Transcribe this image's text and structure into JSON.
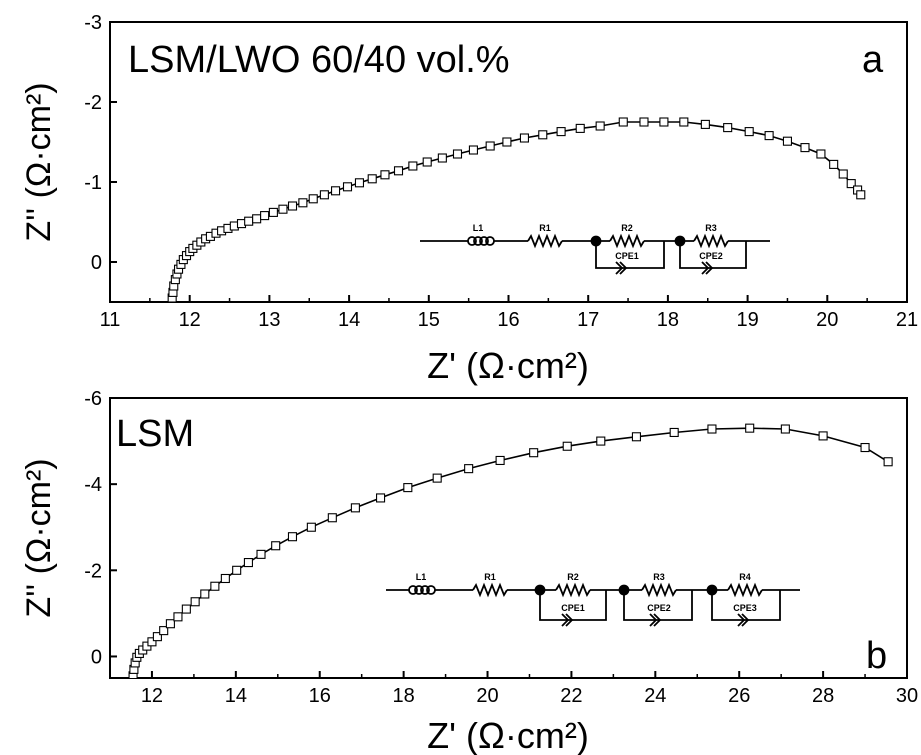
{
  "chart_data": [
    {
      "type": "scatter",
      "panel_label": "a",
      "title": "LSM/LWO 60/40 vol.%",
      "xlabel": "Z' (Ω·cm²)",
      "ylabel": "Z'' (Ω·cm²)",
      "xlim": [
        11,
        21
      ],
      "ylim": [
        0.5,
        -3
      ],
      "x_ticks": [
        "11",
        "12",
        "13",
        "14",
        "15",
        "16",
        "17",
        "18",
        "19",
        "20",
        "21"
      ],
      "y_ticks": [
        "0",
        "-1",
        "-2",
        "-3"
      ],
      "circuit_labels": [
        "L1",
        "R1",
        "R2",
        "CPE1",
        "R3",
        "CPE2"
      ],
      "series": [
        {
          "marker": "open-square",
          "x": [
            11.78,
            11.79,
            11.8,
            11.82,
            11.84,
            11.86,
            11.89,
            11.92,
            11.96,
            12.0,
            12.04,
            12.09,
            12.14,
            12.2,
            12.26,
            12.33,
            12.4,
            12.48,
            12.56,
            12.65,
            12.74,
            12.84,
            12.94,
            13.05,
            13.17,
            13.29,
            13.42,
            13.55,
            13.69,
            13.83,
            13.98,
            14.13,
            14.29,
            14.45,
            14.62,
            14.8,
            14.98,
            15.17,
            15.36,
            15.56,
            15.77,
            15.98,
            16.2,
            16.43,
            16.66,
            16.9,
            17.15,
            17.44,
            17.7,
            17.95,
            18.2,
            18.47,
            18.75,
            19.02,
            19.27,
            19.5,
            19.72,
            19.92,
            20.08,
            20.2,
            20.3,
            20.38,
            20.42
          ],
          "y": [
            0.45,
            0.38,
            0.3,
            0.22,
            0.15,
            0.09,
            0.03,
            -0.03,
            -0.08,
            -0.13,
            -0.17,
            -0.21,
            -0.25,
            -0.29,
            -0.32,
            -0.36,
            -0.39,
            -0.42,
            -0.45,
            -0.48,
            -0.51,
            -0.54,
            -0.58,
            -0.62,
            -0.66,
            -0.7,
            -0.74,
            -0.79,
            -0.84,
            -0.89,
            -0.94,
            -0.99,
            -1.04,
            -1.09,
            -1.14,
            -1.2,
            -1.25,
            -1.3,
            -1.35,
            -1.4,
            -1.45,
            -1.5,
            -1.55,
            -1.59,
            -1.63,
            -1.67,
            -1.7,
            -1.75,
            -1.75,
            -1.75,
            -1.75,
            -1.72,
            -1.68,
            -1.63,
            -1.58,
            -1.51,
            -1.43,
            -1.35,
            -1.22,
            -1.1,
            -0.98,
            -0.9,
            -0.84
          ]
        }
      ]
    },
    {
      "type": "scatter",
      "panel_label": "b",
      "title": "LSM",
      "xlabel": "Z' (Ω·cm²)",
      "ylabel": "Z'' (Ω·cm²)",
      "xlim": [
        11,
        30
      ],
      "ylim": [
        0.5,
        -6
      ],
      "x_ticks": [
        "12",
        "14",
        "16",
        "18",
        "20",
        "22",
        "24",
        "26",
        "28",
        "30"
      ],
      "y_ticks": [
        "0",
        "-2",
        "-4",
        "-6"
      ],
      "circuit_labels": [
        "L1",
        "R1",
        "R2",
        "CPE1",
        "R3",
        "CPE2",
        "R4",
        "CPE3"
      ],
      "series": [
        {
          "marker": "open-square",
          "x": [
            11.55,
            11.57,
            11.6,
            11.64,
            11.7,
            11.78,
            11.88,
            12.0,
            12.13,
            12.28,
            12.44,
            12.62,
            12.82,
            13.03,
            13.26,
            13.5,
            13.75,
            14.02,
            14.3,
            14.6,
            14.95,
            15.35,
            15.8,
            16.3,
            16.85,
            17.45,
            18.1,
            18.8,
            19.55,
            20.3,
            21.1,
            21.9,
            22.7,
            23.55,
            24.45,
            25.35,
            26.25,
            27.1,
            28.0,
            29.0,
            29.55
          ],
          "y": [
            0.45,
            0.3,
            0.15,
            0.02,
            -0.07,
            -0.15,
            -0.24,
            -0.34,
            -0.46,
            -0.6,
            -0.76,
            -0.92,
            -1.1,
            -1.27,
            -1.45,
            -1.63,
            -1.81,
            -2.0,
            -2.18,
            -2.37,
            -2.57,
            -2.78,
            -3.0,
            -3.22,
            -3.45,
            -3.68,
            -3.92,
            -4.14,
            -4.36,
            -4.55,
            -4.73,
            -4.88,
            -5.0,
            -5.1,
            -5.2,
            -5.28,
            -5.3,
            -5.28,
            -5.12,
            -4.85,
            -4.52
          ]
        }
      ]
    }
  ]
}
